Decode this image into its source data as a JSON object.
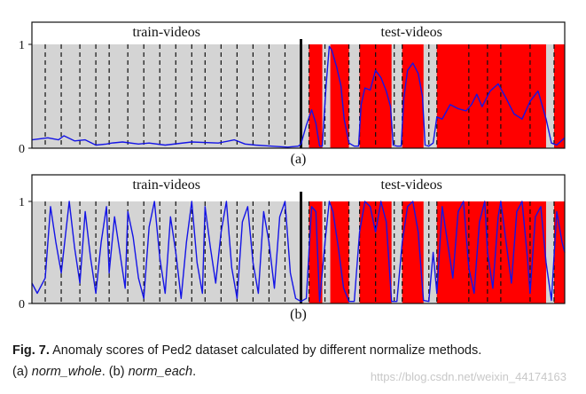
{
  "chart_data": [
    {
      "type": "line",
      "panel_label": "(a)",
      "method": "norm_whole",
      "title_left": "train-videos",
      "title_right": "test-videos",
      "yticks": [
        "1",
        "0"
      ],
      "ylim": [
        0,
        1
      ],
      "xlim": [
        0,
        100
      ],
      "train_region": [
        0,
        50.5
      ],
      "test_region": [
        50.5,
        100
      ],
      "boundary": 50.5,
      "video_boundaries": [
        2.5,
        5.5,
        9,
        12,
        14.5,
        18,
        21,
        24,
        27,
        30,
        32.5,
        35.5,
        38.5,
        41.5,
        44.5,
        47.5,
        52,
        55,
        59.5,
        61.5,
        64.5,
        68,
        69.5,
        74.5,
        76,
        82,
        85.5,
        88,
        93.5,
        98
      ],
      "normal_segments": [
        [
          50.5,
          52
        ],
        [
          54.5,
          56
        ],
        [
          59.5,
          61.5
        ],
        [
          67.5,
          69.5
        ],
        [
          73.5,
          76
        ],
        [
          96.5,
          98
        ]
      ],
      "series": [
        {
          "name": "anomaly score",
          "color": "#1414e6",
          "x": [
            0,
            3,
            5,
            6,
            8,
            10,
            12,
            14,
            15,
            17,
            20,
            22,
            25,
            30,
            35,
            38,
            40,
            42,
            45,
            48,
            50,
            50.5,
            51.5,
            52.5,
            53.3,
            54,
            54.5,
            55.2,
            55.8,
            56.3,
            57.2,
            58,
            58.6,
            59.5,
            60.5,
            61.3,
            61.8,
            62.5,
            63.5,
            64.5,
            65.5,
            66.5,
            67.3,
            67.8,
            68.5,
            69.3,
            69.8,
            70.5,
            71.5,
            72.5,
            73.3,
            73.8,
            74.5,
            75.3,
            76,
            77,
            78.5,
            80,
            81.5,
            82.5,
            83.5,
            84.5,
            86,
            87.5,
            89,
            90.5,
            92,
            93.5,
            95,
            96.5,
            97.5,
            98.5,
            100
          ],
          "values": [
            0.08,
            0.1,
            0.08,
            0.12,
            0.07,
            0.08,
            0.03,
            0.04,
            0.05,
            0.06,
            0.04,
            0.05,
            0.03,
            0.06,
            0.05,
            0.08,
            0.04,
            0.03,
            0.02,
            0.01,
            0.02,
            0.04,
            0.22,
            0.37,
            0.24,
            0.02,
            0.02,
            0.6,
            0.98,
            0.94,
            0.78,
            0.6,
            0.28,
            0.05,
            0.02,
            0.02,
            0.42,
            0.58,
            0.56,
            0.75,
            0.68,
            0.55,
            0.4,
            0.03,
            0.02,
            0.02,
            0.48,
            0.75,
            0.82,
            0.72,
            0.5,
            0.03,
            0.02,
            0.05,
            0.3,
            0.28,
            0.42,
            0.38,
            0.36,
            0.42,
            0.52,
            0.4,
            0.55,
            0.62,
            0.48,
            0.33,
            0.28,
            0.45,
            0.55,
            0.28,
            0.05,
            0.03,
            0.1
          ]
        }
      ]
    },
    {
      "type": "line",
      "panel_label": "(b)",
      "method": "norm_each",
      "title_left": "train-videos",
      "title_right": "test-videos",
      "yticks": [
        "1",
        "0"
      ],
      "ylim": [
        0,
        1
      ],
      "xlim": [
        0,
        100
      ],
      "train_region": [
        0,
        50.5
      ],
      "test_region": [
        50.5,
        100
      ],
      "boundary": 50.5,
      "video_boundaries": [
        2.5,
        5.5,
        9,
        12,
        14.5,
        18,
        21,
        24,
        27,
        30,
        32.5,
        35.5,
        38.5,
        41.5,
        44.5,
        47.5,
        52,
        55,
        59.5,
        61.5,
        64.5,
        68,
        69.5,
        74.5,
        76,
        82,
        85.5,
        88,
        93.5,
        98
      ],
      "normal_segments": [
        [
          50.5,
          52
        ],
        [
          54.5,
          56
        ],
        [
          59.5,
          61.5
        ],
        [
          67.5,
          69.5
        ],
        [
          73.5,
          76
        ],
        [
          96.5,
          98
        ]
      ],
      "series": [
        {
          "name": "anomaly score",
          "color": "#1414e6",
          "x": [
            0,
            1,
            2.5,
            3.5,
            4.5,
            5.5,
            7,
            8,
            9,
            10,
            11,
            12,
            13,
            14,
            14.5,
            15.5,
            16.5,
            17.5,
            18,
            19,
            20,
            21,
            22,
            23,
            24,
            25,
            26,
            27,
            28,
            29,
            30,
            31,
            32,
            32.5,
            33.5,
            34.5,
            35.5,
            36.5,
            37.5,
            38.5,
            39.5,
            40.5,
            41.5,
            42.5,
            43.5,
            44.5,
            45.5,
            46.5,
            47.5,
            48.5,
            49.5,
            50.5,
            51.5,
            52.5,
            53.3,
            54,
            55,
            55.8,
            56.5,
            57.5,
            58.5,
            59.5,
            60.5,
            61.5,
            62.5,
            63.5,
            64.5,
            65.5,
            66.5,
            67.5,
            68.5,
            69.5,
            70.5,
            71.5,
            72.5,
            73.5,
            74.5,
            75.3,
            76,
            77,
            78,
            79,
            80,
            81,
            82,
            83,
            84,
            85,
            85.5,
            86.5,
            87.5,
            88,
            89,
            90,
            91,
            92,
            93,
            93.5,
            94.5,
            95.5,
            96.5,
            97.5,
            98.5,
            99.5,
            100
          ],
          "values": [
            0.2,
            0.1,
            0.25,
            0.95,
            0.6,
            0.3,
            1.0,
            0.55,
            0.2,
            0.9,
            0.45,
            0.1,
            0.6,
            0.95,
            0.3,
            0.85,
            0.5,
            0.15,
            0.9,
            0.65,
            0.25,
            0.05,
            0.75,
            1.0,
            0.45,
            0.1,
            0.85,
            0.5,
            0.05,
            0.6,
            1.0,
            0.4,
            0.1,
            0.95,
            0.55,
            0.2,
            0.7,
            1.0,
            0.35,
            0.05,
            0.8,
            0.95,
            0.4,
            0.1,
            0.9,
            0.6,
            0.15,
            0.85,
            1.0,
            0.3,
            0.05,
            0.02,
            0.05,
            0.95,
            0.9,
            0.02,
            0.6,
            1.0,
            0.9,
            0.55,
            0.15,
            0.02,
            0.02,
            0.7,
            1.0,
            0.95,
            0.7,
            1.0,
            0.8,
            0.02,
            0.02,
            0.6,
            0.95,
            1.0,
            0.7,
            0.03,
            0.02,
            0.5,
            0.1,
            0.95,
            0.6,
            0.25,
            0.9,
            1.0,
            0.35,
            0.1,
            0.8,
            1.0,
            0.5,
            0.15,
            0.85,
            1.0,
            0.6,
            0.2,
            0.9,
            1.0,
            0.45,
            0.1,
            0.85,
            0.95,
            0.4,
            0.03,
            0.9,
            0.6,
            0.5
          ]
        }
      ]
    }
  ],
  "caption": {
    "fig_label": "Fig. 7.",
    "text": "Anomaly scores of Ped2 dataset calculated by different normalize methods.",
    "line2_a": "(a) ",
    "term_a": "norm_whole",
    "line2_mid": ". (b) ",
    "term_b": "norm_each",
    "line2_end": "."
  },
  "watermark": "https://blog.csdn.net/weixin_44174163",
  "colors": {
    "train_fill": "#d4d4d4",
    "anomaly_fill": "#ff0000",
    "line": "#1414e6",
    "frame": "#111111"
  }
}
